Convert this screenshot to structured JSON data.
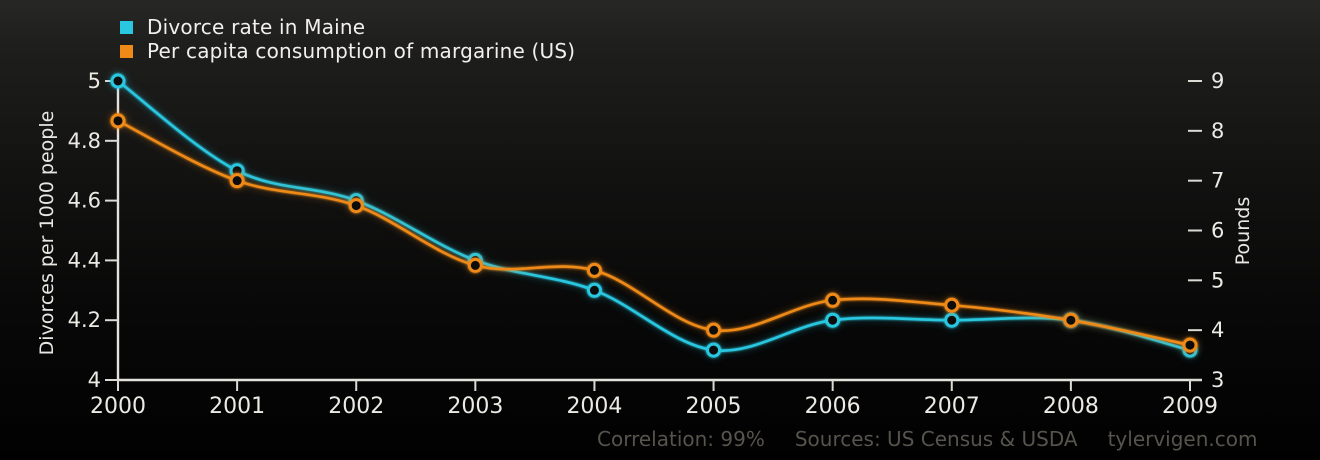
{
  "chart_data": {
    "type": "line",
    "x": [
      2000,
      2001,
      2002,
      2003,
      2004,
      2005,
      2006,
      2007,
      2008,
      2009
    ],
    "series": [
      {
        "name": "Divorce rate in Maine",
        "axis": "left",
        "color": "#29c7e0",
        "values": [
          5.0,
          4.7,
          4.6,
          4.4,
          4.3,
          4.1,
          4.2,
          4.2,
          4.2,
          4.1
        ]
      },
      {
        "name": "Per capita consumption of margarine (US)",
        "axis": "right",
        "color": "#ef8a18",
        "values": [
          8.2,
          7.0,
          6.5,
          5.3,
          5.2,
          4.0,
          4.6,
          4.5,
          4.2,
          3.7
        ]
      }
    ],
    "left_axis": {
      "label": "Divorces per 1000 people",
      "min": 4,
      "max": 5,
      "tick_values": [
        5,
        4.8,
        4.6,
        4.4,
        4.2,
        4
      ],
      "tick_labels": [
        "5",
        "4.8",
        "4.6",
        "4.4",
        "4.2",
        "4"
      ]
    },
    "right_axis": {
      "label": "Pounds",
      "min": 3,
      "max": 9,
      "tick_values": [
        9,
        8,
        7,
        6,
        5,
        4,
        3
      ],
      "tick_labels": [
        "9",
        "8",
        "7",
        "6",
        "5",
        "4",
        "3"
      ]
    },
    "legend_position": "top-left",
    "grid": false
  },
  "footer": {
    "correlation": "Correlation: 99%",
    "sources": "Sources: US Census & USDA",
    "attribution": "tylervigen.com"
  }
}
